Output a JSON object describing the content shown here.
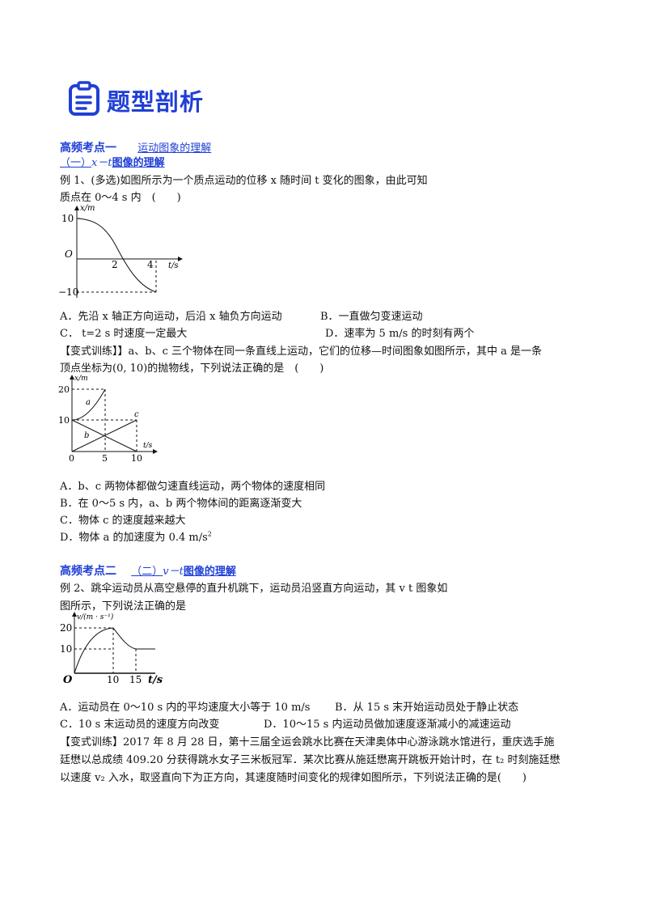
{
  "header": {
    "title": "题型剖析"
  },
  "section1": {
    "label": "高频考点一",
    "topic": "运动图象的理解",
    "sub_prefix": "（一）",
    "sub_var": "x－t",
    "sub_title": "图像的理解"
  },
  "ex1": {
    "line1": "例 1、(多选)如图所示为一个质点运动的位移 x 随时间 t 变化的图象，由此可知",
    "line2": "质点在 0～4 s 内　(　　)",
    "chart_labels": {
      "ylabel": "x/m",
      "xlabel": "t/s",
      "origin": "O",
      "y_top": "10",
      "y_bot": "−10",
      "x1": "2",
      "x2": "4"
    },
    "optA": "A．先沿 x 轴正方向运动，后沿 x 轴负方向运动",
    "optB": "B．一直做匀变速运动",
    "optC": "C． t=2 s 时速度一定最大",
    "optD": "D．速率为 5 m/s 的时刻有两个"
  },
  "var1": {
    "line1": "【变式训练】】a、b、c 三个物体在同一条直线上运动，它们的位移—时间图象如图所示，其中 a 是一条",
    "line2": "顶点坐标为(0, 10)的抛物线，下列说法正确的是　(　　)",
    "chart_labels": {
      "ylabel": "x/m",
      "xlabel": "t/s",
      "y20": "20",
      "y10": "10",
      "x0": "0",
      "x5": "5",
      "x10": "10",
      "a": "a",
      "b": "b",
      "c": "c"
    },
    "optA": "A．b、c 两物体都做匀速直线运动，两个物体的速度相同",
    "optB": "B．在 0～5 s 内，a、b 两个物体间的距离逐渐变大",
    "optC": "C．物体 c 的速度越来越大",
    "optD_pre": "D．物体 a 的加速度为 0.4 m/s",
    "optD_sup": "2"
  },
  "section2": {
    "label": "高频考点二",
    "sub_prefix": "（二）",
    "sub_var": "v－t",
    "sub_title": "图像的理解"
  },
  "ex2": {
    "line1": "例 2、跳伞运动员从高空悬停的直升机跳下，运动员沿竖直方向运动，其 v  t 图象如",
    "line2": "图所示，下列说法正确的是",
    "chart_labels": {
      "ylabel": "v/(m · s⁻¹)",
      "xlabel": "t/s",
      "origin": "O",
      "y20": "20",
      "y10": "10",
      "x10": "10",
      "x15": "15"
    },
    "optA": "A．运动员在 0～10 s 内的平均速度大小等于 10 m/s",
    "optB": "B．从 15 s 末开始运动员处于静止状态",
    "optC": "C．10 s 末运动员的速度方向改变",
    "optD": "D．10～15 s 内运动员做加速度逐渐减小的减速运动"
  },
  "var2": {
    "line1": "【变式训练】2017 年 8 月 28 日，第十三届全运会跳水比赛在天津奥体中心游泳跳水馆进行，重庆选手施",
    "line2": "廷懋以总成绩 409.20 分获得跳水女子三米板冠军．某次比赛从施廷懋离开跳板开始计时，在 t₂ 时刻施廷懋",
    "line3": "以速度 v₂ 入水，取竖直向下为正方向，其速度随时间变化的规律如图所示，下列说法正确的是(　　)"
  },
  "colors": {
    "accent": "#1f3fd6"
  }
}
